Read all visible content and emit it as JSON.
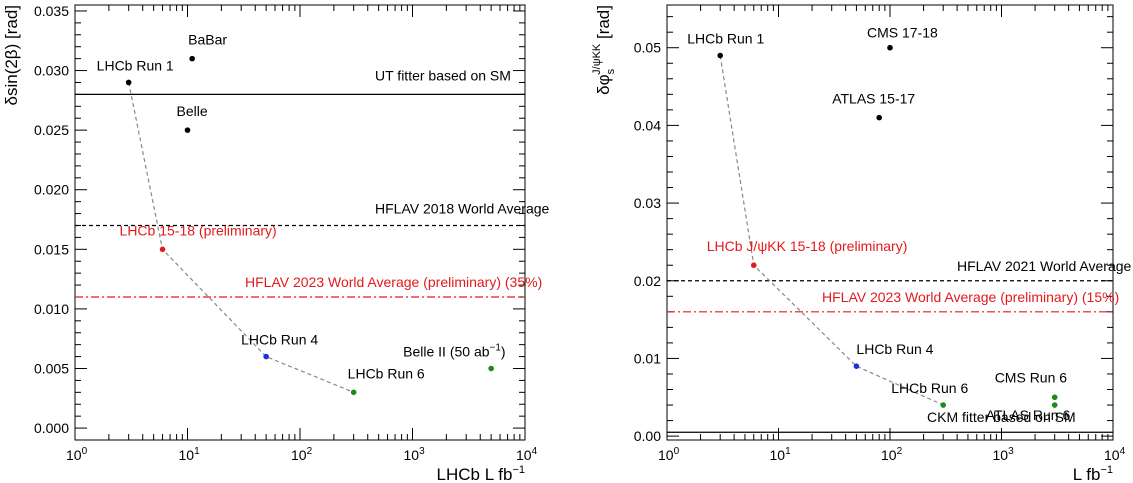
{
  "chart_data": [
    {
      "type": "scatter",
      "xlabel": "LHCb L fb",
      "xlabel_sup": "−1",
      "ylabel_pre": "δsin(2",
      "ylabel_beta": "β",
      "ylabel_post": ") [rad]",
      "xscale": "log",
      "xlim": [
        1,
        10000
      ],
      "ylim": [
        -0.001,
        0.0355
      ],
      "x_ticks": [
        {
          "value": 1,
          "base": "10",
          "exp": "0"
        },
        {
          "value": 10,
          "base": "10",
          "exp": "1"
        },
        {
          "value": 100,
          "base": "10",
          "exp": "2"
        },
        {
          "value": 1000,
          "base": "10",
          "exp": "3"
        },
        {
          "value": 10000,
          "base": "10",
          "exp": "4"
        }
      ],
      "y_ticks": [
        {
          "value": 0.0,
          "label": "0.000"
        },
        {
          "value": 0.005,
          "label": "0.005"
        },
        {
          "value": 0.01,
          "label": "0.010"
        },
        {
          "value": 0.015,
          "label": "0.015"
        },
        {
          "value": 0.02,
          "label": "0.020"
        },
        {
          "value": 0.025,
          "label": "0.025"
        },
        {
          "value": 0.03,
          "label": "0.030"
        },
        {
          "value": 0.035,
          "label": "0.035"
        }
      ],
      "points": [
        {
          "x": 11,
          "y": 0.031,
          "color": "#000000",
          "label": "BaBar",
          "anchor": "ne"
        },
        {
          "x": 10,
          "y": 0.025,
          "color": "#000000",
          "label": "Belle",
          "anchor": "ne"
        },
        {
          "x": 3,
          "y": 0.029,
          "color": "#000000",
          "label": "LHCb Run 1",
          "anchor": "nw"
        },
        {
          "x": 6,
          "y": 0.015,
          "color": "#e31a1c",
          "label": "LHCb 15-18 (preliminary)",
          "anchor": "nw"
        },
        {
          "x": 50,
          "y": 0.006,
          "color": "#1f2fd6",
          "label": "LHCb Run 4",
          "anchor": "nw"
        },
        {
          "x": 300,
          "y": 0.003,
          "color": "#1a8a1a",
          "label": "LHCb Run 6",
          "anchor": "nw"
        },
        {
          "x": 5000,
          "y": 0.005,
          "color": "#1a8a1a",
          "label": "Belle II (50 ab",
          "label_sup": "−1",
          "label_post": ")",
          "anchor": "nw"
        }
      ],
      "projection": {
        "x": [
          3,
          6,
          50,
          300
        ],
        "y": [
          0.029,
          0.015,
          0.006,
          0.003
        ],
        "color": "#888888"
      },
      "hlines": [
        {
          "y": 0.028,
          "style": "solid",
          "color": "#000000",
          "label": "UT fitter based on SM"
        },
        {
          "y": 0.017,
          "style": "dashed",
          "color": "#000000",
          "label": "HFLAV 2018 World Average"
        },
        {
          "y": 0.011,
          "style": "dashdot",
          "color": "#e31a1c",
          "label": "HFLAV 2023 World Average (preliminary) (35%)"
        }
      ]
    },
    {
      "type": "scatter",
      "xlabel": "L fb",
      "xlabel_sup": "−1",
      "ylabel_pre": "δφ",
      "ylabel_sub": "s",
      "ylabel_sup": "J/ψKK",
      "ylabel_post": " [rad]",
      "xscale": "log",
      "xlim": [
        1,
        10000
      ],
      "ylim": [
        -0.0005,
        0.0555
      ],
      "x_ticks": [
        {
          "value": 1,
          "base": "10",
          "exp": "0"
        },
        {
          "value": 10,
          "base": "10",
          "exp": "1"
        },
        {
          "value": 100,
          "base": "10",
          "exp": "2"
        },
        {
          "value": 1000,
          "base": "10",
          "exp": "3"
        },
        {
          "value": 10000,
          "base": "10",
          "exp": "4"
        }
      ],
      "y_ticks": [
        {
          "value": 0.0,
          "label": "0.00"
        },
        {
          "value": 0.01,
          "label": "0.01"
        },
        {
          "value": 0.02,
          "label": "0.02"
        },
        {
          "value": 0.03,
          "label": "0.03"
        },
        {
          "value": 0.04,
          "label": "0.04"
        },
        {
          "value": 0.05,
          "label": "0.05"
        }
      ],
      "points": [
        {
          "x": 3,
          "y": 0.049,
          "color": "#000000",
          "label": "LHCb Run 1",
          "anchor": "nw"
        },
        {
          "x": 100,
          "y": 0.05,
          "color": "#000000",
          "label": "CMS 17-18",
          "anchor": "n"
        },
        {
          "x": 80,
          "y": 0.041,
          "color": "#000000",
          "label": "ATLAS 15-17",
          "anchor": "n"
        },
        {
          "x": 6,
          "y": 0.022,
          "color": "#e31a1c",
          "label": "LHCb J/ψKK 15-18 (preliminary)",
          "anchor": "nw"
        },
        {
          "x": 50,
          "y": 0.009,
          "color": "#1f2fd6",
          "label": "LHCb Run 4",
          "anchor": "ne"
        },
        {
          "x": 300,
          "y": 0.004,
          "color": "#1a8a1a",
          "label": "LHCb Run 6",
          "anchor": "nw"
        },
        {
          "x": 3000,
          "y": 0.005,
          "color": "#1a8a1a",
          "label": "CMS Run 6",
          "anchor": "n"
        },
        {
          "x": 3000,
          "y": 0.004,
          "color": "#1a8a1a",
          "label": "ATLAS Run 6",
          "anchor": "s"
        }
      ],
      "projection": {
        "x": [
          3,
          6,
          50,
          300
        ],
        "y": [
          0.049,
          0.022,
          0.009,
          0.004
        ],
        "color": "#888888"
      },
      "hlines": [
        {
          "y": 0.0005,
          "style": "solid",
          "color": "#000000",
          "label": "CKM fitter based on SM"
        },
        {
          "y": 0.02,
          "style": "dashed",
          "color": "#000000",
          "label": "HFLAV 2021 World Average"
        },
        {
          "y": 0.016,
          "style": "dashdot",
          "color": "#e31a1c",
          "label": "HFLAV 2023 World Average (preliminary) (15%)"
        }
      ]
    }
  ]
}
